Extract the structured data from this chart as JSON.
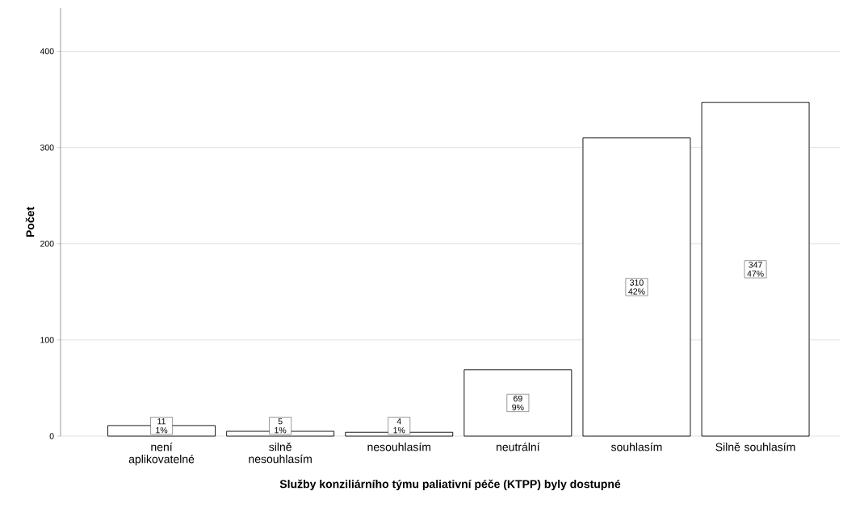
{
  "chart_data": {
    "type": "bar",
    "categories": [
      "není aplikovatelné",
      "silně nesouhlasím",
      "nesouhlasím",
      "neutrální",
      "souhlasím",
      "Silně souhlasím"
    ],
    "values": [
      11,
      5,
      4,
      69,
      310,
      347
    ],
    "value_labels": [
      "11 1%",
      "5 1%",
      "4 1%",
      "69 9%",
      "310 42%",
      "347 47%"
    ],
    "color": "#ffffff",
    "xlabel": "Služby konziliárního týmu paliativní péče (KTPP) byly dostupné",
    "ylabel": "Počet",
    "ylim": [
      0,
      445
    ],
    "yticks": [
      0,
      100,
      200,
      300,
      400
    ],
    "grid": "y"
  }
}
